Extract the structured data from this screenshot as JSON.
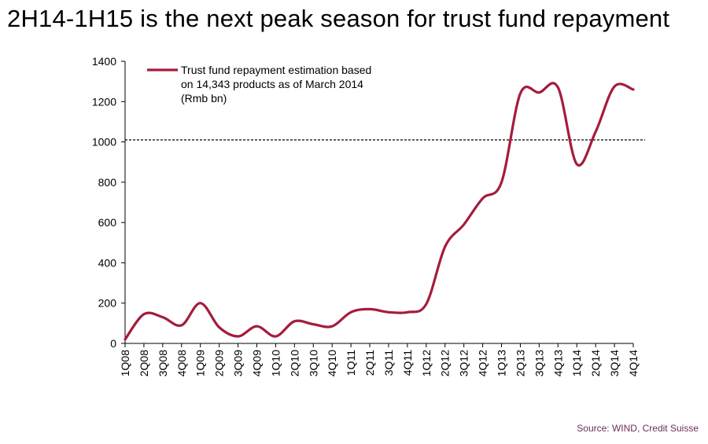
{
  "title": "2H14-1H15 is the next peak season for trust fund repayment",
  "source": "Source: WIND, Credit Suisse",
  "colors": {
    "series": "#a51c3c",
    "reference_line": "#000000",
    "axis": "#000000",
    "source_text": "#6b2d5c"
  },
  "chart_data": {
    "type": "line",
    "title": "2H14-1H15 is the next peak season for trust fund repayment",
    "xlabel": "",
    "ylabel": "",
    "ylim": [
      0,
      1400
    ],
    "yticks": [
      0,
      200,
      400,
      600,
      800,
      1000,
      1200,
      1400
    ],
    "grid": false,
    "legend_position": "top-left",
    "categories": [
      "1Q08",
      "2Q08",
      "3Q08",
      "4Q08",
      "1Q09",
      "2Q09",
      "3Q09",
      "4Q09",
      "1Q10",
      "2Q10",
      "3Q10",
      "4Q10",
      "1Q11",
      "2Q11",
      "3Q11",
      "4Q11",
      "1Q12",
      "2Q12",
      "3Q12",
      "4Q12",
      "1Q13",
      "2Q13",
      "3Q13",
      "4Q13",
      "1Q14",
      "2Q14",
      "3Q14",
      "4Q14"
    ],
    "series": [
      {
        "name": "Trust fund repayment estimation based on 14,343 products as of March 2014 (Rmb bn)",
        "legend_lines": [
          "Trust fund repayment estimation based",
          "on 14,343 products as of March 2014",
          "(Rmb bn)"
        ],
        "values": [
          20,
          145,
          130,
          90,
          200,
          80,
          35,
          85,
          35,
          110,
          95,
          85,
          155,
          170,
          155,
          155,
          195,
          480,
          590,
          720,
          800,
          1240,
          1245,
          1270,
          890,
          1050,
          1275,
          1260
        ]
      }
    ],
    "reference_line": {
      "y": 1010,
      "style": "dashed"
    }
  }
}
